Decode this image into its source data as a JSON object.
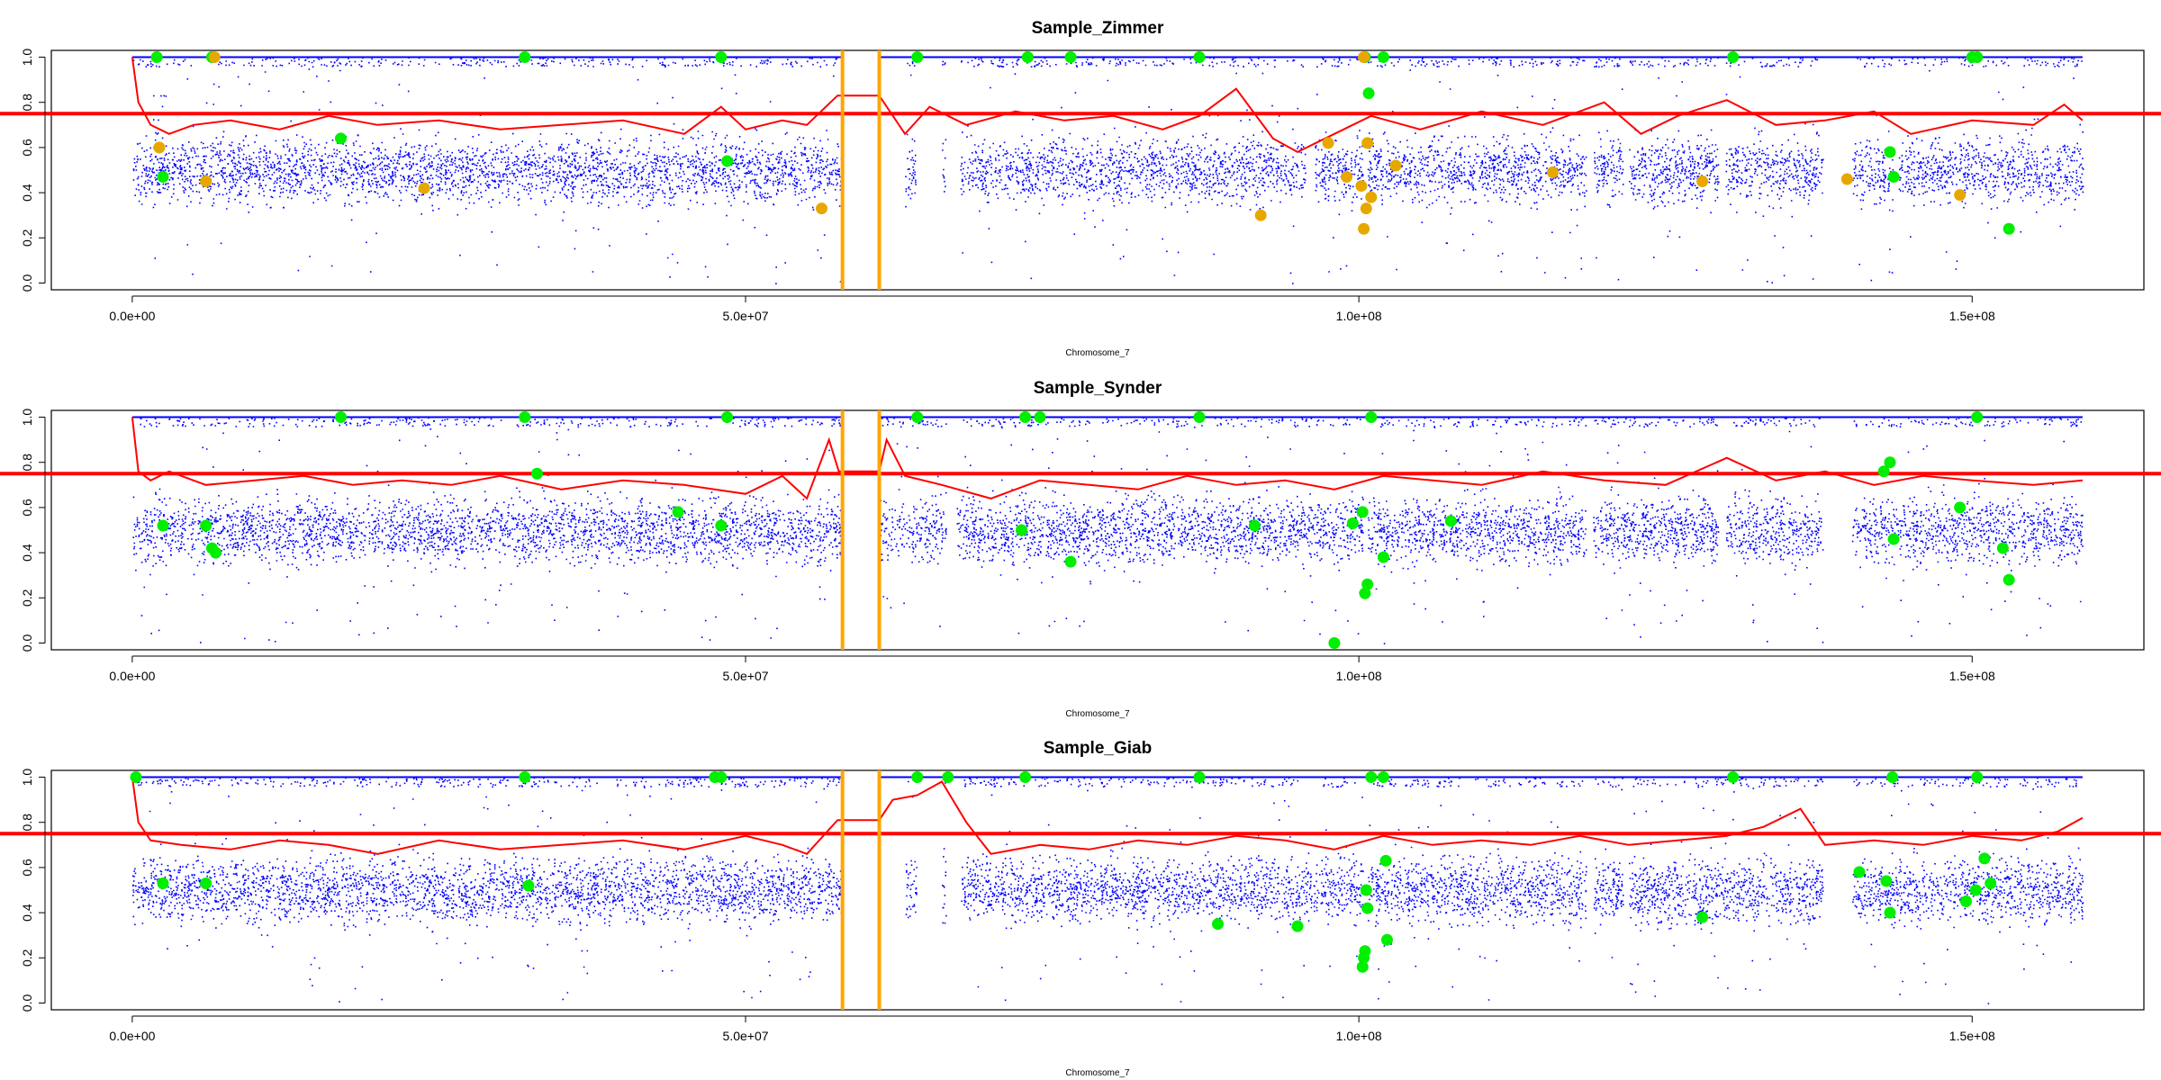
{
  "chart_data": [
    {
      "type": "scatter",
      "title": "Sample_Zimmer",
      "xlabel": "Chromosome_7",
      "ylabel": "",
      "xlim": [
        -6600000,
        164000000
      ],
      "ylim": [
        -0.03,
        1.03
      ],
      "x_ticks": [
        0,
        50000000,
        100000000,
        150000000
      ],
      "x_tick_labels": [
        "0.0e+00",
        "5.0e+07",
        "1.0e+08",
        "1.5e+08"
      ],
      "y_ticks": [
        0,
        0.2,
        0.4,
        0.6,
        0.8,
        1.0
      ],
      "y_tick_labels": [
        "0.0",
        "0.2",
        "0.4",
        "0.6",
        "0.8",
        "1.0"
      ],
      "threshold": 0.75,
      "centromere": [
        57900000,
        60900000
      ],
      "gaps": [
        [
          60900000,
          63000000
        ],
        [
          63900000,
          66000000
        ],
        [
          66300000,
          67500000
        ],
        [
          95600000,
          96400000
        ],
        [
          100300000,
          100700000
        ],
        [
          118500000,
          119100000
        ],
        [
          121500000,
          122000000
        ],
        [
          129300000,
          129900000
        ],
        [
          137800000,
          140200000
        ],
        [
          143500000,
          144000000
        ]
      ],
      "series": [
        {
          "name": "",
          "color": "#0000ff",
          "kind": "variant-density",
          "het_band": [
            0.3,
            0.7
          ],
          "hom_band": [
            0.96,
            1.0
          ]
        },
        {
          "name": "",
          "color": "#ff0000",
          "kind": "rolling-mean",
          "x": [
            0,
            500000,
            1500000,
            3000000,
            5000000,
            8000000,
            12000000,
            16000000,
            20000000,
            25000000,
            30000000,
            35000000,
            40000000,
            45000000,
            48000000,
            50000000,
            53000000,
            55000000,
            57500000,
            60900000,
            63000000,
            65000000,
            68000000,
            72000000,
            76000000,
            80000000,
            84000000,
            87000000,
            90000000,
            93000000,
            95000000,
            98000000,
            101000000,
            105000000,
            110000000,
            115000000,
            120000000,
            123000000,
            126000000,
            130000000,
            134000000,
            138000000,
            142000000,
            145000000,
            150000000,
            155000000,
            157500000,
            159000000
          ],
          "y": [
            1.0,
            0.8,
            0.7,
            0.66,
            0.7,
            0.72,
            0.68,
            0.74,
            0.7,
            0.72,
            0.68,
            0.7,
            0.72,
            0.66,
            0.78,
            0.68,
            0.72,
            0.7,
            0.83,
            0.83,
            0.66,
            0.78,
            0.7,
            0.76,
            0.72,
            0.74,
            0.68,
            0.74,
            0.86,
            0.64,
            0.58,
            0.66,
            0.74,
            0.68,
            0.76,
            0.7,
            0.8,
            0.66,
            0.74,
            0.81,
            0.7,
            0.72,
            0.76,
            0.66,
            0.72,
            0.7,
            0.79,
            0.72
          ]
        },
        {
          "name": "",
          "color": "#00ee00",
          "kind": "highlighted-variants",
          "x": [
            2000000,
            6500000,
            17000000,
            32000000,
            48000000,
            64000000,
            73000000,
            76500000,
            87000000,
            100500000,
            100800000,
            102000000,
            130500000,
            150000000,
            150400000,
            2500000,
            48500000,
            143300000,
            143600000,
            153000000
          ],
          "y": [
            1.0,
            1.0,
            0.64,
            1.0,
            1.0,
            1.0,
            1.0,
            1.0,
            1.0,
            1.0,
            0.84,
            1.0,
            1.0,
            1.0,
            1.0,
            0.47,
            0.54,
            0.58,
            0.47,
            0.24
          ]
        },
        {
          "name": "",
          "color": "#e6a800",
          "kind": "highlighted-variants-2",
          "x": [
            2200000,
            6700000,
            6000000,
            23800000,
            56200000,
            92000000,
            97500000,
            99000000,
            100200000,
            100400000,
            100600000,
            100700000,
            101000000,
            103000000,
            115800000,
            128000000,
            139800000,
            149000000,
            100400000
          ],
          "y": [
            0.6,
            1.0,
            0.45,
            0.42,
            0.33,
            0.3,
            0.62,
            0.47,
            0.43,
            0.24,
            0.33,
            0.62,
            0.38,
            0.52,
            0.49,
            0.45,
            0.46,
            0.39,
            1.0
          ]
        }
      ]
    },
    {
      "type": "scatter",
      "title": "Sample_Synder",
      "xlabel": "Chromosome_7",
      "ylabel": "",
      "xlim": [
        -6600000,
        164000000
      ],
      "ylim": [
        -0.03,
        1.03
      ],
      "x_ticks": [
        0,
        50000000,
        100000000,
        150000000
      ],
      "x_tick_labels": [
        "0.0e+00",
        "5.0e+07",
        "1.0e+08",
        "1.5e+08"
      ],
      "y_ticks": [
        0,
        0.2,
        0.4,
        0.6,
        0.8,
        1.0
      ],
      "y_tick_labels": [
        "0.0",
        "0.2",
        "0.4",
        "0.6",
        "0.8",
        "1.0"
      ],
      "threshold": 0.75,
      "centromere": [
        57900000,
        60900000
      ],
      "gaps": [
        [
          66300000,
          67200000
        ],
        [
          100300000,
          100700000
        ],
        [
          118500000,
          119100000
        ],
        [
          129300000,
          129900000
        ],
        [
          137800000,
          140200000
        ]
      ],
      "series": [
        {
          "name": "",
          "color": "#0000ff",
          "kind": "variant-density",
          "het_band": [
            0.3,
            0.7
          ],
          "hom_band": [
            0.96,
            1.0
          ]
        },
        {
          "name": "",
          "color": "#ff0000",
          "kind": "rolling-mean",
          "x": [
            0,
            500000,
            1500000,
            3000000,
            6000000,
            10000000,
            14000000,
            18000000,
            22000000,
            26000000,
            30000000,
            35000000,
            40000000,
            45000000,
            50000000,
            53000000,
            55000000,
            56800000,
            57600000,
            60900000,
            61500000,
            63000000,
            66000000,
            70000000,
            74000000,
            78000000,
            82000000,
            86000000,
            90000000,
            94000000,
            98000000,
            102000000,
            106000000,
            110000000,
            115000000,
            120000000,
            125000000,
            130000000,
            134000000,
            138000000,
            142000000,
            146000000,
            150000000,
            155000000,
            159000000
          ],
          "y": [
            1.0,
            0.76,
            0.72,
            0.76,
            0.7,
            0.72,
            0.74,
            0.7,
            0.72,
            0.7,
            0.74,
            0.68,
            0.72,
            0.7,
            0.66,
            0.74,
            0.64,
            0.9,
            0.76,
            0.76,
            0.9,
            0.74,
            0.7,
            0.64,
            0.72,
            0.7,
            0.68,
            0.74,
            0.7,
            0.72,
            0.68,
            0.74,
            0.72,
            0.7,
            0.76,
            0.72,
            0.7,
            0.82,
            0.72,
            0.76,
            0.7,
            0.74,
            0.72,
            0.7,
            0.72
          ]
        },
        {
          "name": "",
          "color": "#00ee00",
          "kind": "highlighted-variants",
          "x": [
            2500000,
            6000000,
            6500000,
            6800000,
            17000000,
            32000000,
            33000000,
            44500000,
            48000000,
            48500000,
            64000000,
            72500000,
            72800000,
            74000000,
            76500000,
            87000000,
            91500000,
            98000000,
            99500000,
            100300000,
            100500000,
            100700000,
            101000000,
            102000000,
            107500000,
            142800000,
            143300000,
            143600000,
            149000000,
            150400000,
            152500000,
            153000000
          ],
          "y": [
            0.52,
            0.52,
            0.42,
            0.4,
            1.0,
            1.0,
            0.75,
            0.58,
            0.52,
            1.0,
            1.0,
            0.5,
            1.0,
            1.0,
            0.36,
            1.0,
            0.52,
            0.0,
            0.53,
            0.58,
            0.22,
            0.26,
            1.0,
            0.38,
            0.54,
            0.76,
            0.8,
            0.46,
            0.6,
            1.0,
            0.42,
            0.28
          ]
        }
      ]
    },
    {
      "type": "scatter",
      "title": "Sample_Giab",
      "xlabel": "Chromosome_7",
      "ylabel": "",
      "xlim": [
        -6600000,
        164000000
      ],
      "ylim": [
        -0.03,
        1.03
      ],
      "x_ticks": [
        0,
        50000000,
        100000000,
        150000000
      ],
      "x_tick_labels": [
        "0.0e+00",
        "5.0e+07",
        "1.0e+08",
        "1.5e+08"
      ],
      "y_ticks": [
        0,
        0.2,
        0.4,
        0.6,
        0.8,
        1.0
      ],
      "y_tick_labels": [
        "0.0",
        "0.2",
        "0.4",
        "0.6",
        "0.8",
        "1.0"
      ],
      "threshold": 0.75,
      "centromere": [
        57900000,
        60900000
      ],
      "gaps": [
        [
          60900000,
          63000000
        ],
        [
          63900000,
          66000000
        ],
        [
          66300000,
          67500000
        ],
        [
          100300000,
          100700000
        ],
        [
          118500000,
          119100000
        ],
        [
          121500000,
          122000000
        ],
        [
          137800000,
          140200000
        ]
      ],
      "series": [
        {
          "name": "",
          "color": "#0000ff",
          "kind": "variant-density",
          "het_band": [
            0.3,
            0.7
          ],
          "hom_band": [
            0.96,
            1.0
          ]
        },
        {
          "name": "",
          "color": "#ff0000",
          "kind": "rolling-mean",
          "x": [
            0,
            500000,
            1500000,
            4000000,
            8000000,
            12000000,
            16000000,
            20000000,
            25000000,
            30000000,
            35000000,
            40000000,
            45000000,
            50000000,
            53000000,
            55000000,
            57500000,
            60900000,
            62000000,
            64000000,
            66000000,
            68000000,
            70000000,
            74000000,
            78000000,
            82000000,
            86000000,
            90000000,
            94000000,
            98000000,
            102000000,
            106000000,
            110000000,
            114000000,
            118000000,
            122000000,
            126000000,
            130000000,
            133000000,
            136000000,
            138000000,
            142000000,
            146000000,
            150000000,
            154000000,
            157000000,
            159000000
          ],
          "y": [
            1.0,
            0.8,
            0.72,
            0.7,
            0.68,
            0.72,
            0.7,
            0.66,
            0.72,
            0.68,
            0.7,
            0.72,
            0.68,
            0.74,
            0.7,
            0.66,
            0.81,
            0.81,
            0.9,
            0.92,
            0.98,
            0.8,
            0.66,
            0.7,
            0.68,
            0.72,
            0.7,
            0.74,
            0.72,
            0.68,
            0.74,
            0.7,
            0.72,
            0.7,
            0.74,
            0.7,
            0.72,
            0.74,
            0.78,
            0.86,
            0.7,
            0.72,
            0.7,
            0.74,
            0.72,
            0.76,
            0.82
          ]
        },
        {
          "name": "",
          "color": "#00ee00",
          "kind": "highlighted-variants",
          "x": [
            300000,
            2500000,
            6000000,
            32000000,
            32300000,
            47500000,
            48000000,
            64000000,
            66500000,
            72800000,
            87000000,
            88500000,
            95000000,
            100300000,
            100400000,
            100500000,
            100600000,
            100700000,
            101000000,
            102000000,
            102200000,
            102300000,
            128000000,
            130500000,
            140800000,
            143000000,
            143300000,
            143500000,
            149500000,
            150300000,
            150400000,
            151000000,
            151500000
          ],
          "y": [
            1.0,
            0.53,
            0.53,
            1.0,
            0.52,
            1.0,
            1.0,
            1.0,
            1.0,
            1.0,
            1.0,
            0.35,
            0.34,
            0.16,
            0.2,
            0.23,
            0.5,
            0.42,
            1.0,
            1.0,
            0.63,
            0.28,
            0.38,
            1.0,
            0.58,
            0.54,
            0.4,
            1.0,
            0.45,
            0.5,
            1.0,
            0.64,
            0.53
          ]
        }
      ]
    }
  ]
}
